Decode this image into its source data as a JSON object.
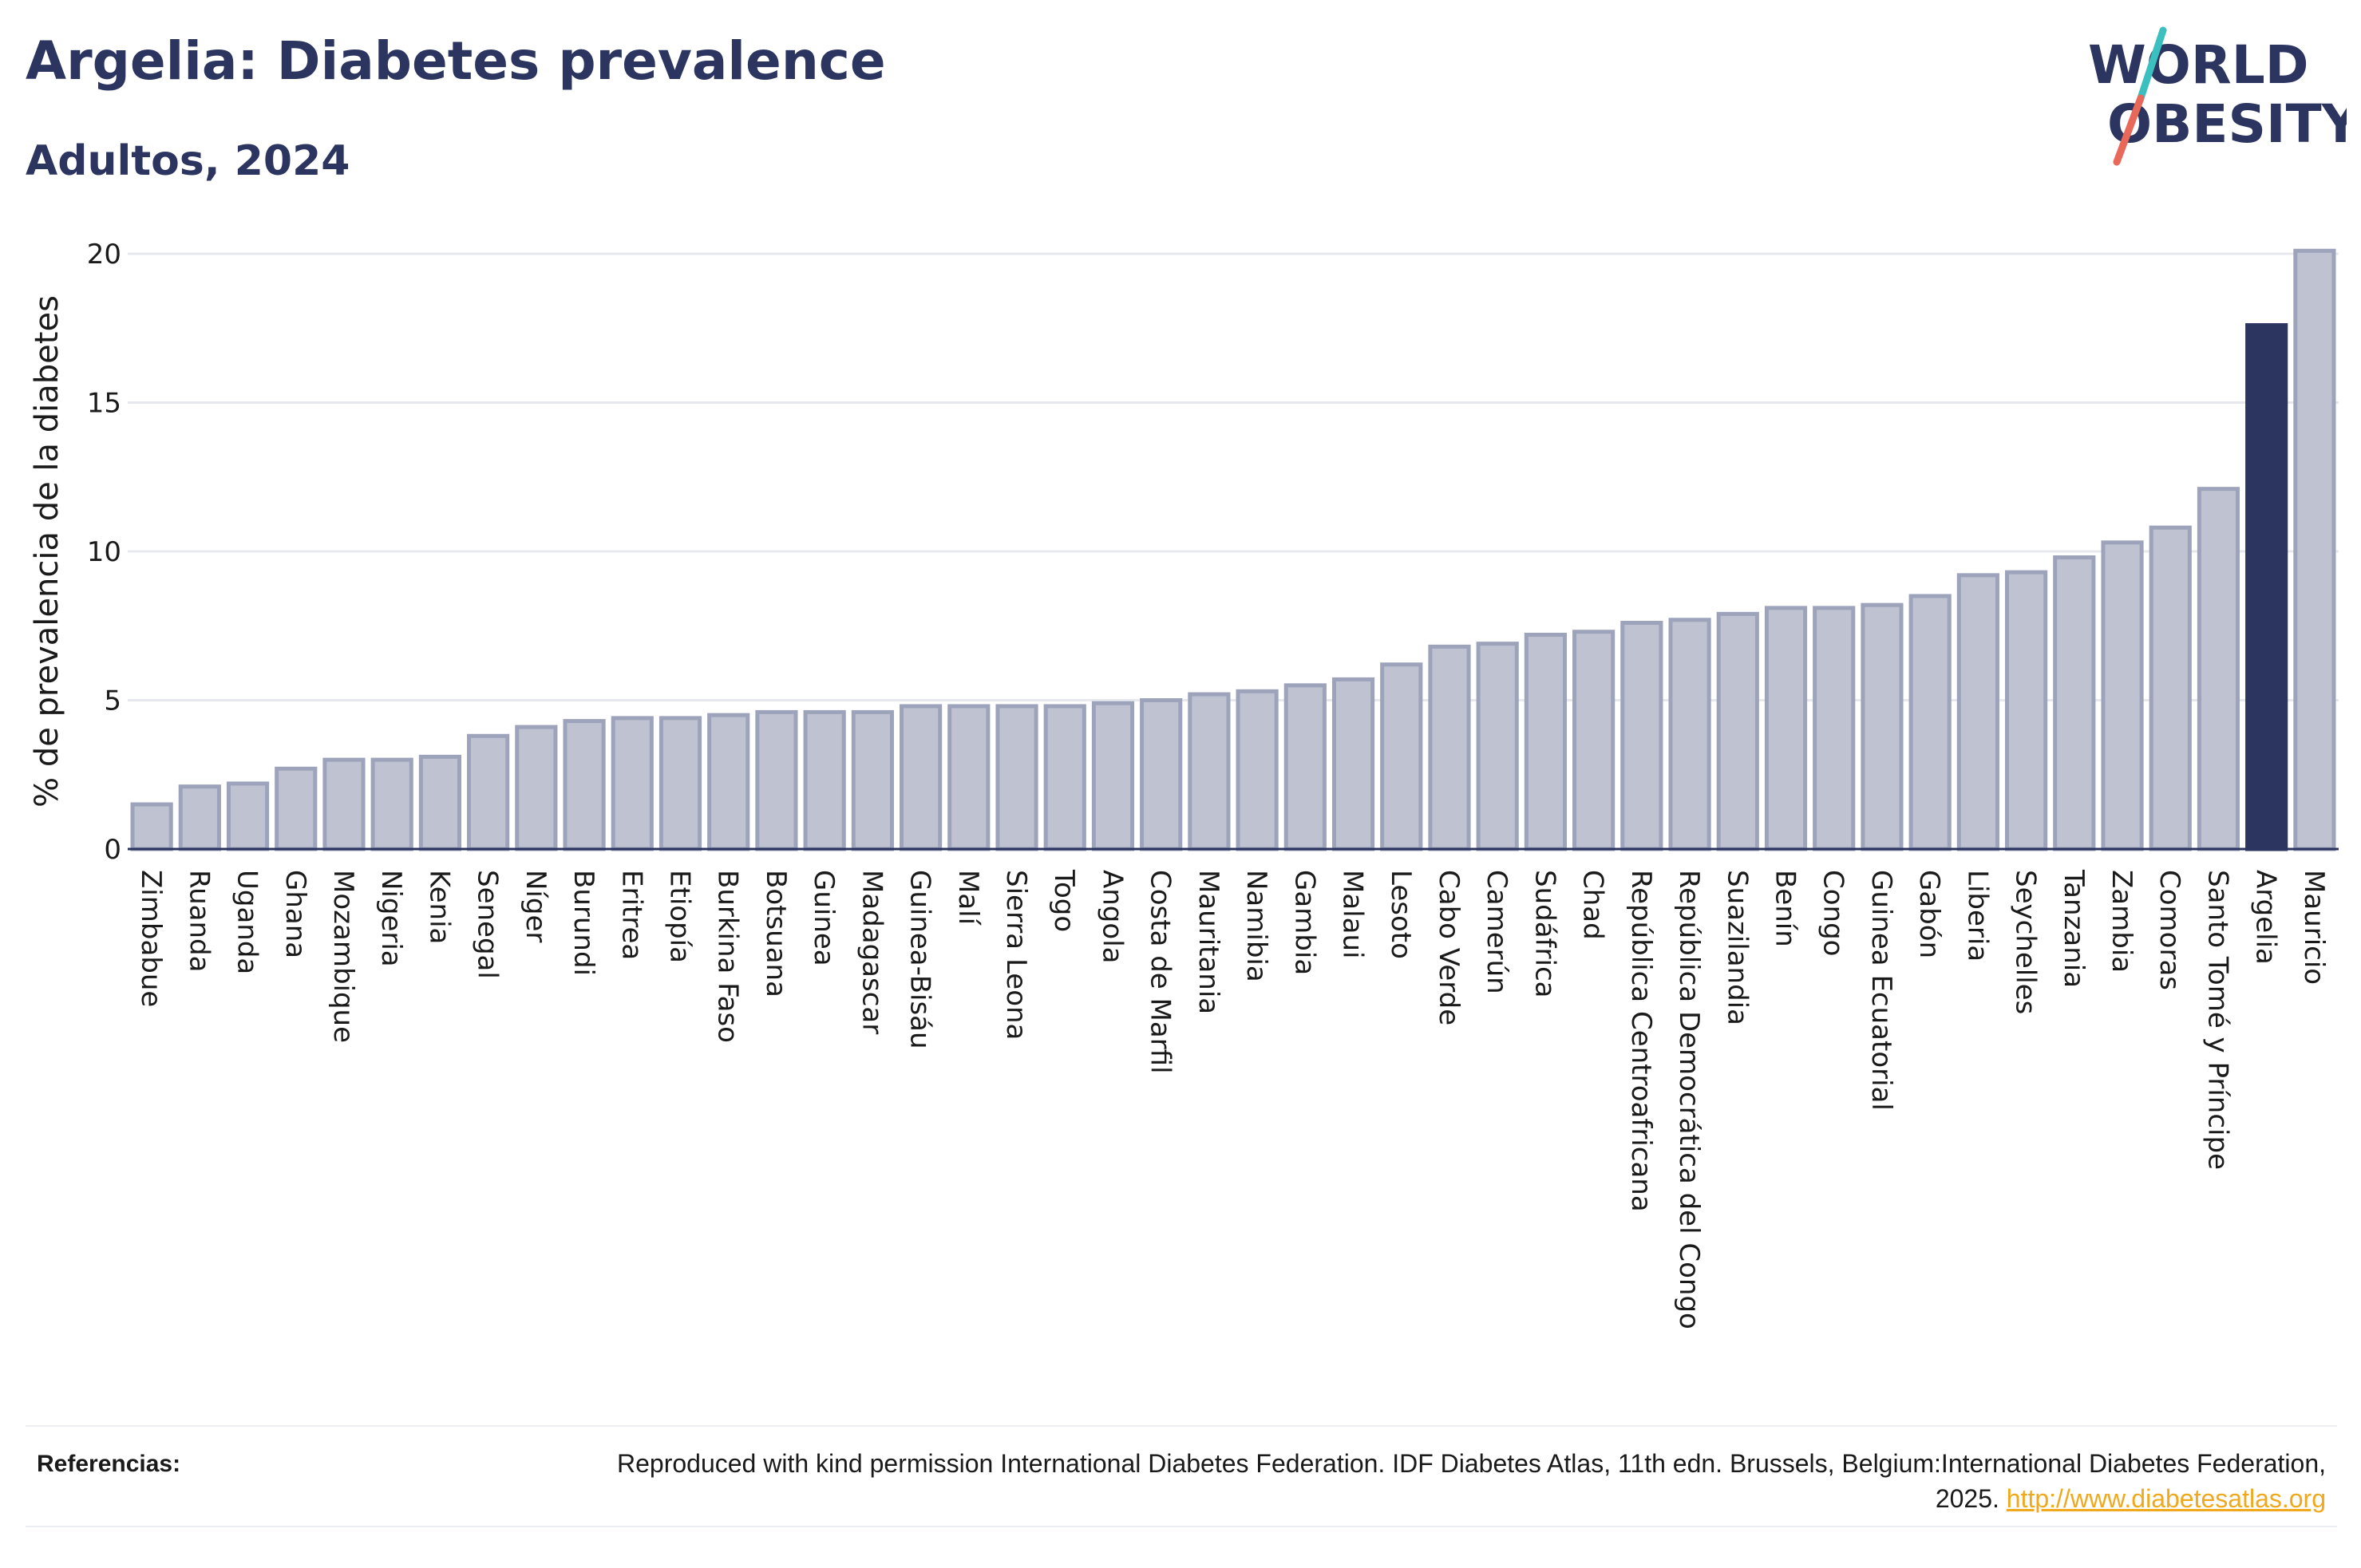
{
  "header": {
    "title": "Argelia: Diabetes prevalence",
    "subtitle": "Adultos, 2024"
  },
  "logo": {
    "line1": "WORLD",
    "line2": "OBESITY",
    "colors": {
      "text": "#2b3560",
      "slash_top": "#3bbfbf",
      "slash_bottom": "#e8685a"
    }
  },
  "chart_data": {
    "type": "bar",
    "title": "Argelia: Diabetes prevalence",
    "subtitle": "Adultos, 2024",
    "xlabel": "",
    "ylabel": "% de prevalencia de la diabetes",
    "ylim": [
      0,
      20
    ],
    "yticks": [
      0,
      5,
      10,
      15,
      20
    ],
    "grid": true,
    "highlight": "Argelia",
    "colors": {
      "default_fill": "#bfc3d1",
      "default_stroke": "#9da3bb",
      "highlight_fill": "#2b3560"
    },
    "categories": [
      "Zimbabue",
      "Ruanda",
      "Uganda",
      "Ghana",
      "Mozambique",
      "Nigeria",
      "Kenia",
      "Senegal",
      "Níger",
      "Burundi",
      "Eritrea",
      "Etiopía",
      "Burkina Faso",
      "Botsuana",
      "Guinea",
      "Madagascar",
      "Guinea-Bisáu",
      "Malí",
      "Sierra Leona",
      "Togo",
      "Angola",
      "Costa de Marfil",
      "Mauritania",
      "Namibia",
      "Gambia",
      "Malaui",
      "Lesoto",
      "Cabo Verde",
      "Camerún",
      "Sudáfrica",
      "Chad",
      "República Centroafricana",
      "República Democrática del Congo",
      "Suazilandia",
      "Benín",
      "Congo",
      "Guinea Ecuatorial",
      "Gabón",
      "Liberia",
      "Seychelles",
      "Tanzania",
      "Zambia",
      "Comoras",
      "Santo Tomé y Príncipe",
      "Argelia",
      "Mauricio"
    ],
    "values": [
      1.5,
      2.1,
      2.2,
      2.7,
      3.0,
      3.0,
      3.1,
      3.8,
      4.1,
      4.3,
      4.4,
      4.4,
      4.5,
      4.6,
      4.6,
      4.6,
      4.8,
      4.8,
      4.8,
      4.8,
      4.9,
      5.0,
      5.2,
      5.3,
      5.5,
      5.7,
      6.2,
      6.8,
      6.9,
      7.2,
      7.3,
      7.6,
      7.7,
      7.9,
      8.1,
      8.1,
      8.2,
      8.5,
      9.2,
      9.3,
      9.8,
      10.3,
      10.8,
      12.1,
      17.6,
      20.1
    ]
  },
  "footer": {
    "label": "Referencias:",
    "text": "Reproduced with kind permission International Diabetes Federation. IDF Diabetes Atlas, 11th edn. Brussels, Belgium:International Diabetes Federation, 2025.",
    "link": "http://www.diabetesatlas.org"
  }
}
